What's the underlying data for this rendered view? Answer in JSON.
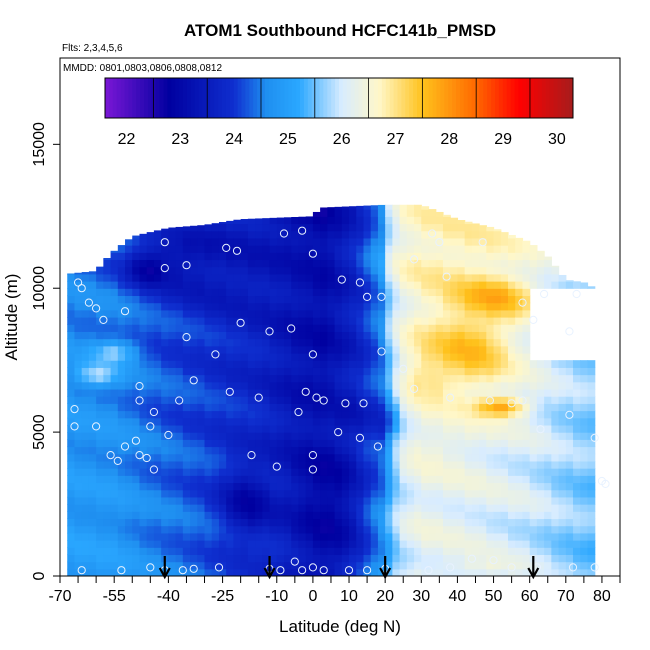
{
  "chart_data": {
    "type": "heatmap",
    "title": "ATOM1 Southbound HCFC141b_PMSD",
    "flights_note": "Flts: 2,3,4,5,6",
    "dates_note": "MMDD: 0801,0803,0806,0808,0812",
    "xlabel": "Latitude (deg N)",
    "ylabel": "Altitude (m)",
    "xlim": [
      -70,
      85
    ],
    "ylim": [
      0,
      18000
    ],
    "x_ticks": [
      -70,
      -55,
      -40,
      -25,
      -10,
      0,
      10,
      20,
      30,
      40,
      50,
      60,
      70,
      80
    ],
    "x_minor_ticks": [
      -65,
      -60,
      -50,
      -45,
      -35,
      -30,
      -20,
      -15,
      -5,
      5,
      15,
      25,
      35,
      45,
      55,
      65,
      75,
      85
    ],
    "y_ticks": [
      0,
      5000,
      10000,
      15000
    ],
    "colorbar": {
      "min": 21.6,
      "max": 30.3,
      "ticks": [
        22,
        23,
        24,
        25,
        26,
        27,
        28,
        29,
        30
      ],
      "colors": [
        "#7b17d6",
        "#0000a0",
        "#0f2fcf",
        "#1f8ff0",
        "#2aa7ff",
        "#d8ecff",
        "#fff7c8",
        "#ffc21c",
        "#ff6800",
        "#ff0000",
        "#a61c1c"
      ],
      "stops": [
        21.6,
        22.8,
        24.0,
        24.6,
        25.2,
        26.0,
        26.7,
        27.5,
        28.5,
        29.3,
        30.3
      ]
    },
    "arrow_latitudes": [
      -41,
      -12,
      20,
      61
    ],
    "field": {
      "x_range": [
        -68,
        78
      ],
      "y_range": [
        0,
        12700
      ],
      "upper_extent": [
        [
          -68,
          10500
        ],
        [
          -60,
          10600
        ],
        [
          -56,
          11200
        ],
        [
          -50,
          11800
        ],
        [
          -40,
          12100
        ],
        [
          -30,
          12200
        ],
        [
          -20,
          12400
        ],
        [
          0,
          12500
        ],
        [
          2,
          12800
        ],
        [
          20,
          12900
        ],
        [
          30,
          12900
        ],
        [
          40,
          12400
        ],
        [
          50,
          12100
        ],
        [
          60,
          11600
        ],
        [
          65,
          11100
        ],
        [
          70,
          10300
        ],
        [
          75,
          10200
        ],
        [
          78,
          10000
        ]
      ],
      "gaps": [
        {
          "x": [
            60,
            78
          ],
          "y": [
            7300,
            10000
          ]
        }
      ],
      "features": [
        {
          "lat": -35,
          "alt": 11000,
          "value": 23.0,
          "dlat": 15,
          "dalt": 900
        },
        {
          "lat": -45,
          "alt": 10700,
          "value": 22.6,
          "dlat": 5,
          "dalt": 500
        },
        {
          "lat": -20,
          "alt": 10500,
          "value": 23.4,
          "dlat": 20,
          "dalt": 1200
        },
        {
          "lat": -18,
          "alt": 2600,
          "value": 23.0,
          "dlat": 7,
          "dalt": 1300
        },
        {
          "lat": 4,
          "alt": 2600,
          "value": 22.9,
          "dlat": 8,
          "dalt": 2600
        },
        {
          "lat": 8,
          "alt": 5600,
          "value": 23.4,
          "dlat": 10,
          "dalt": 900
        },
        {
          "lat": 18,
          "alt": 5200,
          "value": 23.8,
          "dlat": 4,
          "dalt": 1500
        },
        {
          "lat": 40,
          "alt": 11200,
          "value": 26.8,
          "dlat": 18,
          "dalt": 1600
        },
        {
          "lat": 50,
          "alt": 9700,
          "value": 27.7,
          "dlat": 10,
          "dalt": 700
        },
        {
          "lat": 43,
          "alt": 8000,
          "value": 27.5,
          "dlat": 12,
          "dalt": 1500
        },
        {
          "lat": 33,
          "alt": 7000,
          "value": 27.2,
          "dlat": 8,
          "dalt": 700
        },
        {
          "lat": 52,
          "alt": 5900,
          "value": 27.9,
          "dlat": 7,
          "dalt": 350
        },
        {
          "lat": 35,
          "alt": 4700,
          "value": 26.5,
          "dlat": 10,
          "dalt": 500
        },
        {
          "lat": 45,
          "alt": 300,
          "value": 26.4,
          "dlat": 12,
          "dalt": 300
        },
        {
          "lat": -60,
          "alt": 7000,
          "value": 25.8,
          "dlat": 6,
          "dalt": 400
        },
        {
          "lat": -55,
          "alt": 7800,
          "value": 25.6,
          "dlat": 6,
          "dalt": 400
        }
      ]
    },
    "sample_points": [
      [
        -41,
        11600
      ],
      [
        -41,
        10700
      ],
      [
        -35,
        10800
      ],
      [
        -24,
        11400
      ],
      [
        -21,
        11300
      ],
      [
        -8,
        11900
      ],
      [
        -3,
        12000
      ],
      [
        0,
        11200
      ],
      [
        8,
        10300
      ],
      [
        13,
        10200
      ],
      [
        15,
        9700
      ],
      [
        19,
        9700
      ],
      [
        28,
        11000
      ],
      [
        33,
        11900
      ],
      [
        35,
        11600
      ],
      [
        37,
        10400
      ],
      [
        47,
        11600
      ],
      [
        58,
        9500
      ],
      [
        61,
        8900
      ],
      [
        64,
        9800
      ],
      [
        71,
        8500
      ],
      [
        73,
        9800
      ],
      [
        -65,
        10200
      ],
      [
        -64,
        10000
      ],
      [
        -62,
        9500
      ],
      [
        -60,
        9300
      ],
      [
        -58,
        8900
      ],
      [
        -52,
        9200
      ],
      [
        -35,
        8300
      ],
      [
        -27,
        7700
      ],
      [
        -20,
        8800
      ],
      [
        -12,
        8500
      ],
      [
        -6,
        8600
      ],
      [
        0,
        7700
      ],
      [
        19,
        7800
      ],
      [
        25,
        7200
      ],
      [
        28,
        6500
      ],
      [
        -48,
        6600
      ],
      [
        -48,
        6100
      ],
      [
        -44,
        5700
      ],
      [
        -37,
        6100
      ],
      [
        -33,
        6800
      ],
      [
        -23,
        6400
      ],
      [
        -15,
        6200
      ],
      [
        -4,
        5700
      ],
      [
        -2,
        6400
      ],
      [
        1,
        6200
      ],
      [
        3,
        6100
      ],
      [
        9,
        6000
      ],
      [
        14,
        6000
      ],
      [
        -40,
        4900
      ],
      [
        -45,
        5200
      ],
      [
        -49,
        4700
      ],
      [
        -52,
        4500
      ],
      [
        -56,
        4200
      ],
      [
        -60,
        5200
      ],
      [
        -66,
        5800
      ],
      [
        -66,
        5200
      ],
      [
        -54,
        4000
      ],
      [
        -48,
        4200
      ],
      [
        -46,
        4100
      ],
      [
        -44,
        3700
      ],
      [
        -17,
        4200
      ],
      [
        -10,
        3800
      ],
      [
        0,
        4200
      ],
      [
        0,
        3700
      ],
      [
        7,
        5000
      ],
      [
        13,
        4800
      ],
      [
        18,
        4500
      ],
      [
        38,
        6200
      ],
      [
        49,
        6100
      ],
      [
        55,
        6000
      ],
      [
        58,
        6100
      ],
      [
        63,
        5100
      ],
      [
        71,
        5600
      ],
      [
        78,
        4800
      ],
      [
        -3,
        200
      ],
      [
        0,
        300
      ],
      [
        3,
        200
      ],
      [
        10,
        200
      ],
      [
        15,
        200
      ],
      [
        20,
        250
      ],
      [
        -26,
        300
      ],
      [
        -33,
        250
      ],
      [
        -41,
        200
      ],
      [
        -45,
        300
      ],
      [
        -53,
        200
      ],
      [
        -64,
        200
      ],
      [
        44,
        600
      ],
      [
        55,
        300
      ],
      [
        62,
        300
      ],
      [
        72,
        300
      ],
      [
        78,
        300
      ],
      [
        80,
        3300
      ],
      [
        81,
        3200
      ],
      [
        32,
        200
      ],
      [
        38,
        300
      ],
      [
        50,
        550
      ],
      [
        -5,
        500
      ],
      [
        -9,
        200
      ],
      [
        -12,
        250
      ],
      [
        -36,
        200
      ]
    ]
  }
}
